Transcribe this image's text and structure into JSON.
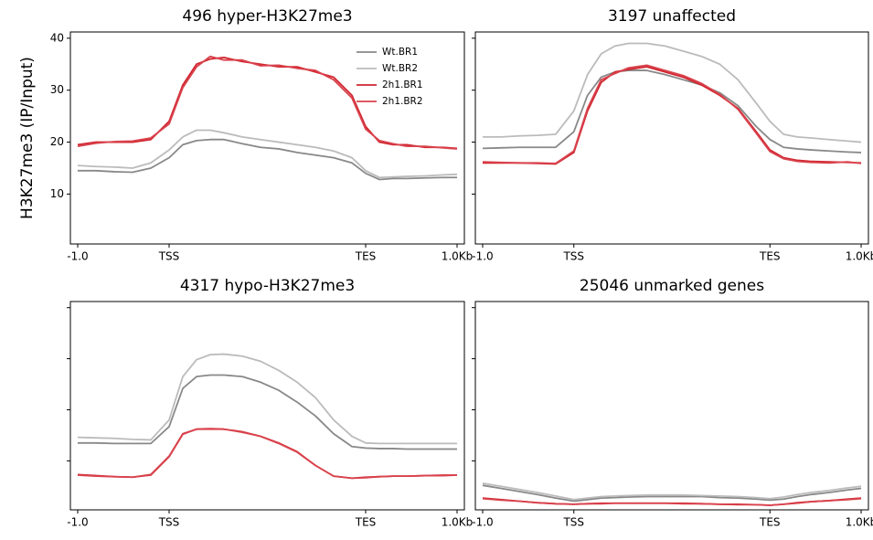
{
  "chart_data": [
    {
      "type": "line",
      "title": "496 hyper-H3K27me3",
      "ylabel": "H3K27me3 (IP/Input)",
      "legend": "upper right",
      "ytick_labels": true,
      "x": [
        0,
        20,
        40,
        60,
        80,
        100,
        115,
        130,
        145,
        160,
        180,
        200,
        220,
        240,
        260,
        280,
        300,
        315,
        330,
        345,
        360,
        380,
        400,
        415
      ],
      "xlim": [
        -8,
        423
      ],
      "xticks": [
        {
          "value": 0,
          "label": "-1.0"
        },
        {
          "value": 100,
          "label": "TSS"
        },
        {
          "value": 315,
          "label": "TES"
        },
        {
          "value": 415,
          "label": "1.0Kb"
        }
      ],
      "ylim": [
        0.4,
        41.2
      ],
      "yticks": [
        10,
        20,
        30,
        40
      ],
      "series": [
        {
          "name": "Wt.BR1",
          "color": "#888888",
          "values": [
            14.5,
            14.5,
            14.3,
            14.2,
            15,
            17,
            19.5,
            20.3,
            20.5,
            20.5,
            19.7,
            19,
            18.7,
            18,
            17.5,
            17,
            16,
            14,
            12.8,
            13,
            13,
            13.1,
            13.2,
            13.2
          ]
        },
        {
          "name": "Wt.BR2",
          "color": "#bbbbbb",
          "values": [
            15.5,
            15.3,
            15.2,
            15,
            16,
            18.5,
            21,
            22.3,
            22.3,
            21.8,
            21,
            20.5,
            20,
            19.5,
            19,
            18.3,
            17,
            14.5,
            13.2,
            13.3,
            13.4,
            13.5,
            13.7,
            13.8
          ]
        },
        {
          "name": "2h1.BR1",
          "color": "#d1252f",
          "values": [
            19.5,
            20,
            20,
            20,
            20.5,
            24,
            31,
            35,
            36,
            36.3,
            35.5,
            35,
            34.5,
            34.5,
            33.5,
            32.5,
            29,
            23,
            20,
            19.5,
            19.5,
            19,
            19,
            18.8
          ]
        },
        {
          "name": "2h1.BR2",
          "color": "#d9434d",
          "values": [
            19.2,
            19.8,
            20.1,
            20.2,
            20.8,
            23.5,
            30.5,
            34.5,
            36.5,
            35.8,
            35.8,
            34.7,
            34.8,
            34.2,
            33.8,
            32,
            28.5,
            22.5,
            20.3,
            19.7,
            19.2,
            19.2,
            18.9,
            18.7
          ]
        }
      ]
    },
    {
      "type": "line",
      "title": "3197 unaffected",
      "ytick_labels": false,
      "x": [
        0,
        20,
        40,
        60,
        80,
        100,
        115,
        130,
        145,
        160,
        180,
        200,
        220,
        240,
        260,
        280,
        300,
        315,
        330,
        345,
        360,
        380,
        400,
        415
      ],
      "xlim": [
        -8,
        423
      ],
      "xticks": [
        {
          "value": 0,
          "label": "-1.0"
        },
        {
          "value": 100,
          "label": "TSS"
        },
        {
          "value": 315,
          "label": "TES"
        },
        {
          "value": 415,
          "label": "1.0Kb"
        }
      ],
      "ylim": [
        0.4,
        41.2
      ],
      "yticks": [
        10,
        20,
        30,
        40
      ],
      "series": [
        {
          "color": "#888888",
          "values": [
            18.8,
            18.9,
            19,
            19,
            19,
            22,
            29,
            32.5,
            33.5,
            33.8,
            33.8,
            33,
            32,
            31,
            29.5,
            27,
            23,
            20.5,
            19,
            18.7,
            18.5,
            18.3,
            18.1,
            18
          ]
        },
        {
          "color": "#bbbbbb",
          "values": [
            21,
            21,
            21.2,
            21.3,
            21.5,
            26,
            33,
            37,
            38.5,
            39,
            39,
            38.5,
            37.5,
            36.5,
            35,
            32,
            27.5,
            24,
            21.5,
            21,
            20.8,
            20.5,
            20.2,
            20
          ]
        },
        {
          "color": "#d1252f",
          "values": [
            16,
            16,
            16,
            15.9,
            15.8,
            18,
            26,
            31.5,
            33.5,
            34,
            34.5,
            33.5,
            32.5,
            31,
            29,
            26.5,
            22,
            18.5,
            17,
            16.5,
            16.3,
            16.2,
            16.1,
            16
          ]
        },
        {
          "color": "#d9434d",
          "values": [
            16.2,
            16.1,
            16,
            16,
            15.9,
            18.3,
            26.5,
            32,
            33.2,
            34.3,
            34.8,
            33.8,
            32.8,
            31.3,
            29.2,
            26.3,
            21.7,
            18.2,
            16.8,
            16.3,
            16.1,
            16,
            16.2,
            15.9
          ]
        }
      ]
    },
    {
      "type": "line",
      "title": "4317 hypo-H3K27me3",
      "ytick_labels": false,
      "x": [
        0,
        20,
        40,
        60,
        80,
        100,
        115,
        130,
        145,
        160,
        180,
        200,
        220,
        240,
        260,
        280,
        300,
        315,
        330,
        345,
        360,
        380,
        400,
        415
      ],
      "xlim": [
        -8,
        423
      ],
      "xticks": [
        {
          "value": 0,
          "label": "-1.0"
        },
        {
          "value": 100,
          "label": "TSS"
        },
        {
          "value": 315,
          "label": "TES"
        },
        {
          "value": 415,
          "label": "1.0Kb"
        }
      ],
      "ylim": [
        0.4,
        41.2
      ],
      "yticks": [
        10,
        20,
        30,
        40
      ],
      "series": [
        {
          "color": "#888888",
          "values": [
            13.5,
            13.5,
            13.4,
            13.4,
            13.4,
            16.7,
            24.2,
            26.5,
            26.8,
            26.8,
            26.5,
            25.4,
            23.8,
            21.5,
            18.8,
            15.3,
            12.8,
            12.5,
            12.4,
            12.4,
            12.3,
            12.3,
            12.3,
            12.3
          ]
        },
        {
          "color": "#bbbbbb",
          "values": [
            14.6,
            14.5,
            14.4,
            14.2,
            14.1,
            18,
            26.5,
            29.8,
            30.8,
            30.9,
            30.5,
            29.5,
            27.7,
            25.4,
            22.4,
            18,
            14.8,
            13.5,
            13.4,
            13.4,
            13.4,
            13.4,
            13.4,
            13.4
          ]
        },
        {
          "color": "#d1252f",
          "values": [
            7.3,
            7.1,
            6.9,
            6.8,
            7.3,
            10.9,
            15.3,
            16.2,
            16.3,
            16.2,
            15.7,
            14.8,
            13.5,
            11.8,
            9.1,
            7,
            6.6,
            6.8,
            6.9,
            7,
            7,
            7.1,
            7.2,
            7.2
          ]
        },
        {
          "color": "#d9434d",
          "values": [
            7.2,
            7,
            6.9,
            6.8,
            7.2,
            10.8,
            15.2,
            16.2,
            16.2,
            16.2,
            15.6,
            14.8,
            13.4,
            11.7,
            9.1,
            7,
            6.6,
            6.7,
            6.9,
            7,
            7,
            7.1,
            7.1,
            7.2
          ]
        }
      ]
    },
    {
      "type": "line",
      "title": "25046 unmarked genes",
      "ytick_labels": false,
      "x": [
        0,
        20,
        40,
        60,
        80,
        100,
        115,
        130,
        145,
        160,
        180,
        200,
        220,
        240,
        260,
        280,
        300,
        315,
        330,
        345,
        360,
        380,
        400,
        415
      ],
      "xlim": [
        -8,
        423
      ],
      "xticks": [
        {
          "value": 0,
          "label": "-1.0"
        },
        {
          "value": 100,
          "label": "TSS"
        },
        {
          "value": 315,
          "label": "TES"
        },
        {
          "value": 415,
          "label": "1.0Kb"
        }
      ],
      "ylim": [
        0.4,
        41.2
      ],
      "yticks": [
        10,
        20,
        30,
        40
      ],
      "series": [
        {
          "color": "#888888",
          "values": [
            5.2,
            4.6,
            4,
            3.4,
            2.7,
            2.1,
            2.4,
            2.7,
            2.8,
            2.9,
            3,
            3,
            3,
            3,
            2.8,
            2.7,
            2.5,
            2.3,
            2.5,
            3,
            3.4,
            3.8,
            4.3,
            4.6
          ]
        },
        {
          "color": "#bbbbbb",
          "values": [
            5.6,
            5,
            4.4,
            3.8,
            3.1,
            2.4,
            2.7,
            3,
            3.1,
            3.2,
            3.3,
            3.3,
            3.3,
            3.2,
            3.1,
            3,
            2.8,
            2.6,
            2.9,
            3.4,
            3.8,
            4.2,
            4.7,
            5
          ]
        },
        {
          "color": "#d1252f",
          "values": [
            2.7,
            2.4,
            2.1,
            1.8,
            1.6,
            1.5,
            1.6,
            1.7,
            1.7,
            1.7,
            1.7,
            1.7,
            1.7,
            1.6,
            1.5,
            1.5,
            1.4,
            1.3,
            1.5,
            1.8,
            2,
            2.2,
            2.5,
            2.7
          ]
        },
        {
          "color": "#d9434d",
          "values": [
            2.6,
            2.3,
            2.1,
            1.8,
            1.6,
            1.5,
            1.6,
            1.6,
            1.7,
            1.7,
            1.7,
            1.7,
            1.6,
            1.6,
            1.5,
            1.4,
            1.4,
            1.3,
            1.5,
            1.7,
            2,
            2.2,
            2.4,
            2.6
          ]
        }
      ]
    }
  ]
}
